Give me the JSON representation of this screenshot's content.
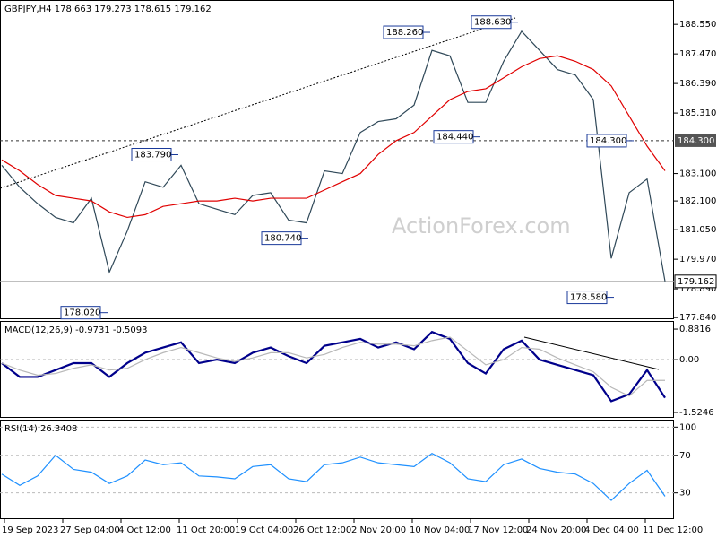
{
  "chart_data": [
    {
      "type": "line",
      "title": "GBPJPY,H4  178.663 179.273 178.615 179.162",
      "series": [
        {
          "color": "#2f4858",
          "values": [
            183.4,
            182.6,
            182.0,
            181.5,
            181.3,
            182.2,
            179.5,
            181.0,
            182.8,
            182.6,
            183.4,
            182.0,
            181.8,
            181.6,
            182.3,
            182.4,
            181.4,
            181.3,
            183.2,
            183.1,
            184.6,
            185.0,
            185.1,
            185.6,
            187.6,
            187.4,
            185.7,
            185.7,
            187.2,
            188.3,
            187.6,
            186.9,
            186.7,
            185.8,
            180.0,
            182.4,
            182.9,
            179.162
          ]
        },
        {
          "color": "#e00000",
          "values": [
            183.6,
            183.2,
            182.7,
            182.3,
            182.2,
            182.1,
            181.7,
            181.5,
            181.6,
            181.9,
            182.0,
            182.1,
            182.1,
            182.2,
            182.1,
            182.2,
            182.2,
            182.2,
            182.5,
            182.8,
            183.1,
            183.8,
            184.3,
            184.6,
            185.2,
            185.8,
            186.1,
            186.2,
            186.6,
            187.0,
            187.3,
            187.4,
            187.2,
            186.9,
            186.3,
            185.2,
            184.1,
            183.2
          ]
        }
      ],
      "ylim": [
        177.78,
        189.44
      ],
      "yticks": [
        {
          "value": 188.55,
          "label": "188.550"
        },
        {
          "value": 187.47,
          "label": "187.470"
        },
        {
          "value": 186.39,
          "label": "186.390"
        },
        {
          "value": 185.31,
          "label": "185.310"
        },
        {
          "value": 183.1,
          "label": "183.100"
        },
        {
          "value": 182.1,
          "label": "182.100"
        },
        {
          "value": 181.05,
          "label": "181.050"
        },
        {
          "value": 179.97,
          "label": "179.970"
        },
        {
          "value": 178.89,
          "label": "178.890"
        },
        {
          "value": 177.84,
          "label": "177.840"
        }
      ],
      "annotations": [
        {
          "value": 188.26,
          "label": "188.260"
        },
        {
          "value": 188.63,
          "label": "188.630"
        },
        {
          "value": 183.79,
          "label": "183.790"
        },
        {
          "value": 184.44,
          "label": "184.440"
        },
        {
          "value": 184.3,
          "label": "184.300"
        },
        {
          "value": 180.74,
          "label": "180.740"
        },
        {
          "value": 178.02,
          "label": "178.020"
        },
        {
          "value": 178.58,
          "label": "178.580"
        }
      ],
      "last": 179.162,
      "watermark": "ActionForex.com"
    },
    {
      "type": "line",
      "title": "MACD(12,26,9) -0.9731 -0.5093",
      "series": [
        {
          "color": "#00008b",
          "values": [
            -0.1,
            -0.5,
            -0.5,
            -0.3,
            -0.1,
            -0.1,
            -0.5,
            -0.1,
            0.2,
            0.35,
            0.5,
            -0.1,
            0.0,
            -0.1,
            0.2,
            0.35,
            0.1,
            -0.1,
            0.4,
            0.5,
            0.6,
            0.35,
            0.5,
            0.3,
            0.8,
            0.6,
            -0.1,
            -0.4,
            0.3,
            0.55,
            0.0,
            -0.15,
            -0.3,
            -0.45,
            -1.2,
            -1.0,
            -0.3,
            -1.1
          ]
        },
        {
          "color": "#b8b8b8",
          "values": [
            -0.1,
            -0.3,
            -0.45,
            -0.4,
            -0.25,
            -0.15,
            -0.3,
            -0.25,
            0.0,
            0.2,
            0.35,
            0.2,
            0.05,
            -0.05,
            0.05,
            0.2,
            0.2,
            0.05,
            0.15,
            0.35,
            0.5,
            0.45,
            0.45,
            0.4,
            0.55,
            0.65,
            0.25,
            -0.15,
            0.0,
            0.35,
            0.3,
            0.05,
            -0.15,
            -0.35,
            -0.8,
            -1.05,
            -0.6,
            -0.6
          ]
        }
      ],
      "ylim": [
        -1.68,
        1.09
      ],
      "yticks": [
        0.8816,
        {
          "value": 0,
          "label": "0.00"
        },
        -1.5246
      ],
      "zero_line": true
    },
    {
      "type": "line",
      "title": "RSI(14) 26.3408",
      "series": [
        {
          "color": "#1e90ff",
          "values": [
            50,
            38,
            48,
            70,
            55,
            52,
            40,
            48,
            65,
            60,
            62,
            48,
            47,
            45,
            58,
            60,
            45,
            42,
            60,
            62,
            68,
            62,
            60,
            58,
            72,
            62,
            45,
            42,
            60,
            66,
            56,
            52,
            50,
            40,
            22,
            40,
            54,
            26.34
          ]
        }
      ],
      "ylim": [
        2,
        107
      ],
      "yticks": [
        100,
        70,
        30
      ],
      "grid": true,
      "x_tick_labels": [
        "19 Sep 2023",
        "27 Sep 04:00",
        "4 Oct 12:00",
        "11 Oct 20:00",
        "19 Oct 04:00",
        "26 Oct 12:00",
        "2 Nov 20:00",
        "10 Nov 04:00",
        "17 Nov 12:00",
        "24 Nov 20:00",
        "4 Dec 04:00",
        "11 Dec 12:00"
      ]
    }
  ]
}
